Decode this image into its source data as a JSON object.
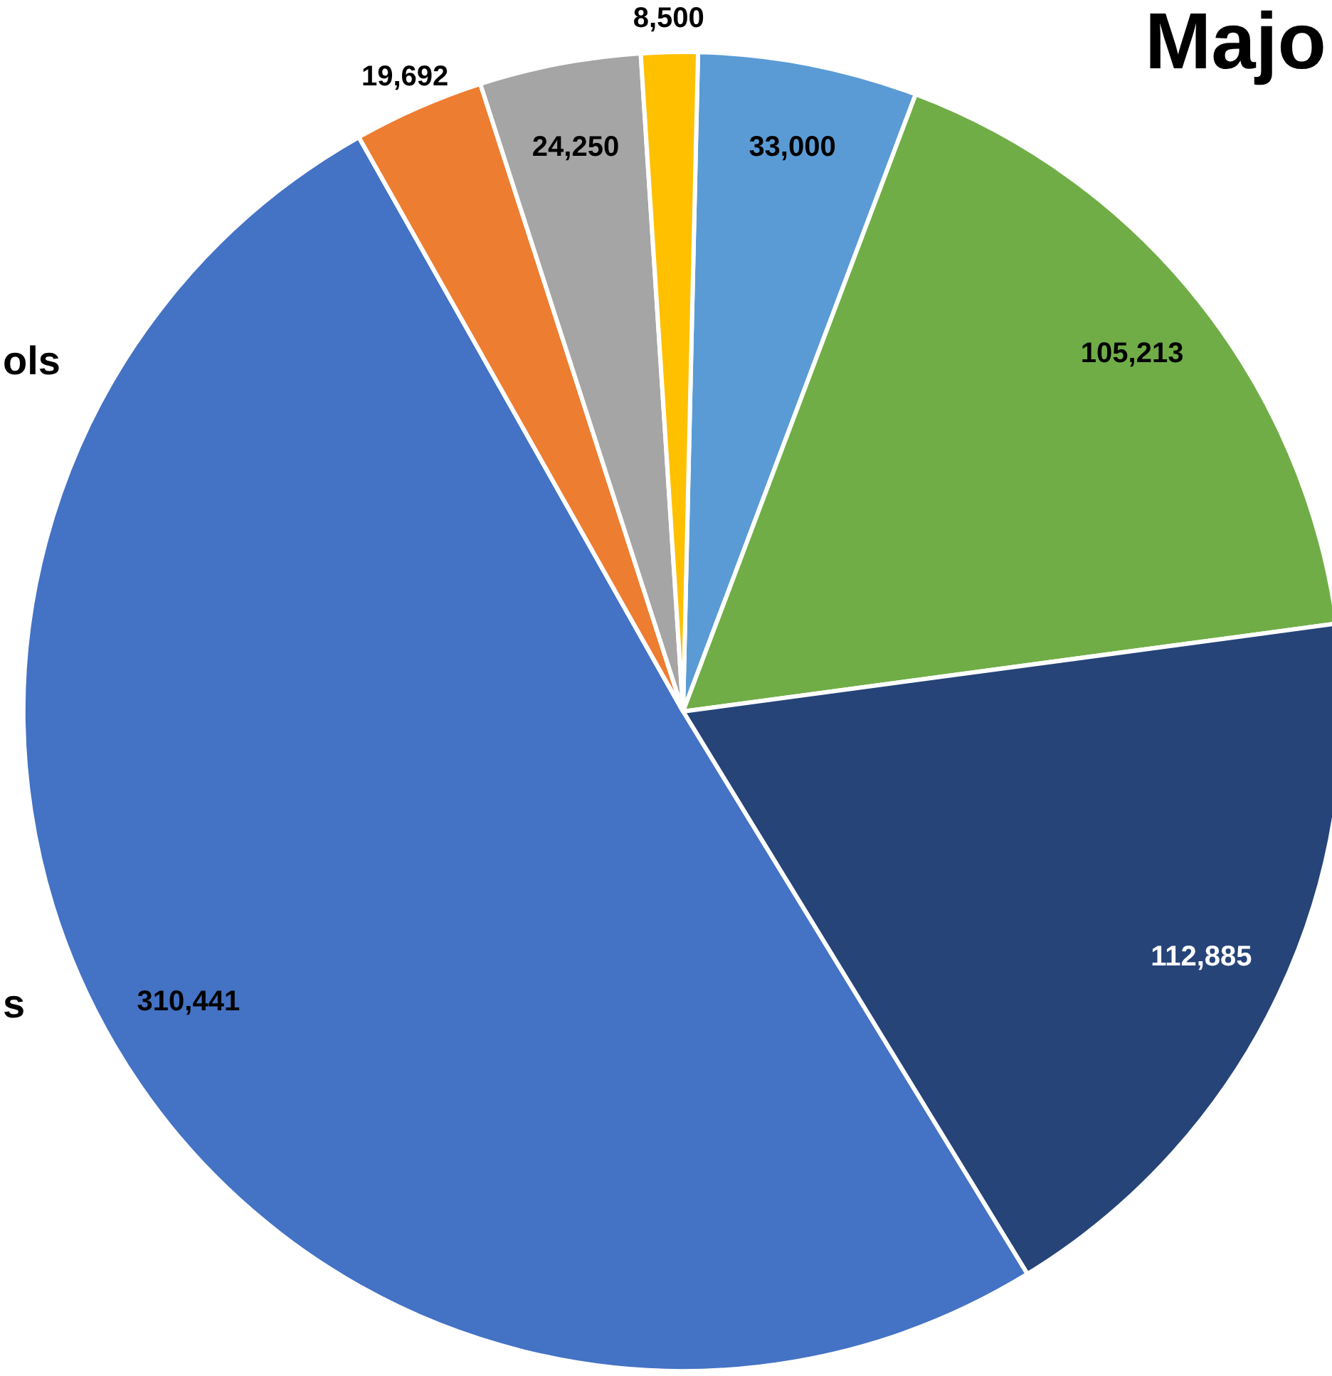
{
  "chart_data": {
    "type": "pie",
    "title": "Majo",
    "categories": [
      null,
      null,
      null,
      null,
      null,
      null,
      null
    ],
    "values": [
      33000,
      105213,
      112885,
      310441,
      19692,
      24250,
      8500
    ],
    "colors": [
      "#5b9bd5",
      "#70ad47",
      "#264478",
      "#4472c4",
      "#ed7d31",
      "#a5a5a5",
      "#ffc000"
    ],
    "value_labels": [
      "33,000",
      "105,213",
      "112,885",
      "310,441",
      "19,692",
      "24,250",
      "8,500"
    ],
    "annotations": [
      "ols",
      "s"
    ],
    "legend": false
  }
}
